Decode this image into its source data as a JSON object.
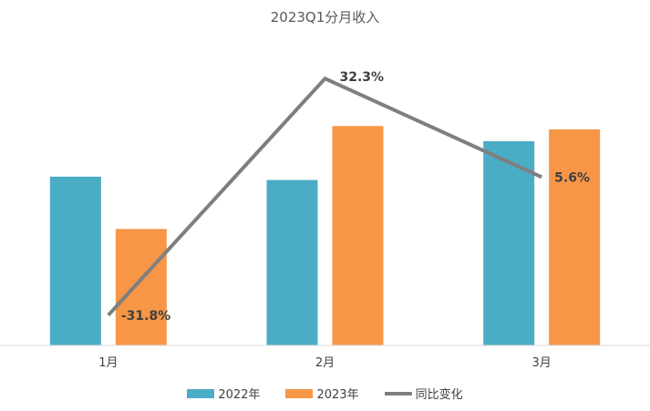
{
  "chart_data": {
    "type": "bar",
    "title": "2023Q1分月收入",
    "categories": [
      "1月",
      "2月",
      "3月"
    ],
    "series": [
      {
        "name": "2022年",
        "type": "bar",
        "color": "#4BACC6",
        "values": [
          100,
          98,
          121
        ]
      },
      {
        "name": "2023年",
        "type": "bar",
        "color": "#F79646",
        "values": [
          69,
          130,
          128
        ]
      }
    ],
    "line_series": {
      "name": "同比变化",
      "color": "#7F7F7F",
      "values": [
        -31.8,
        32.3,
        5.6
      ],
      "labels": [
        "-31.8%",
        "32.3%",
        "5.6%"
      ]
    },
    "ylim": [
      0,
      175
    ],
    "line_ylim": [
      -40,
      40
    ],
    "grid": false,
    "legend_position": "bottom"
  }
}
